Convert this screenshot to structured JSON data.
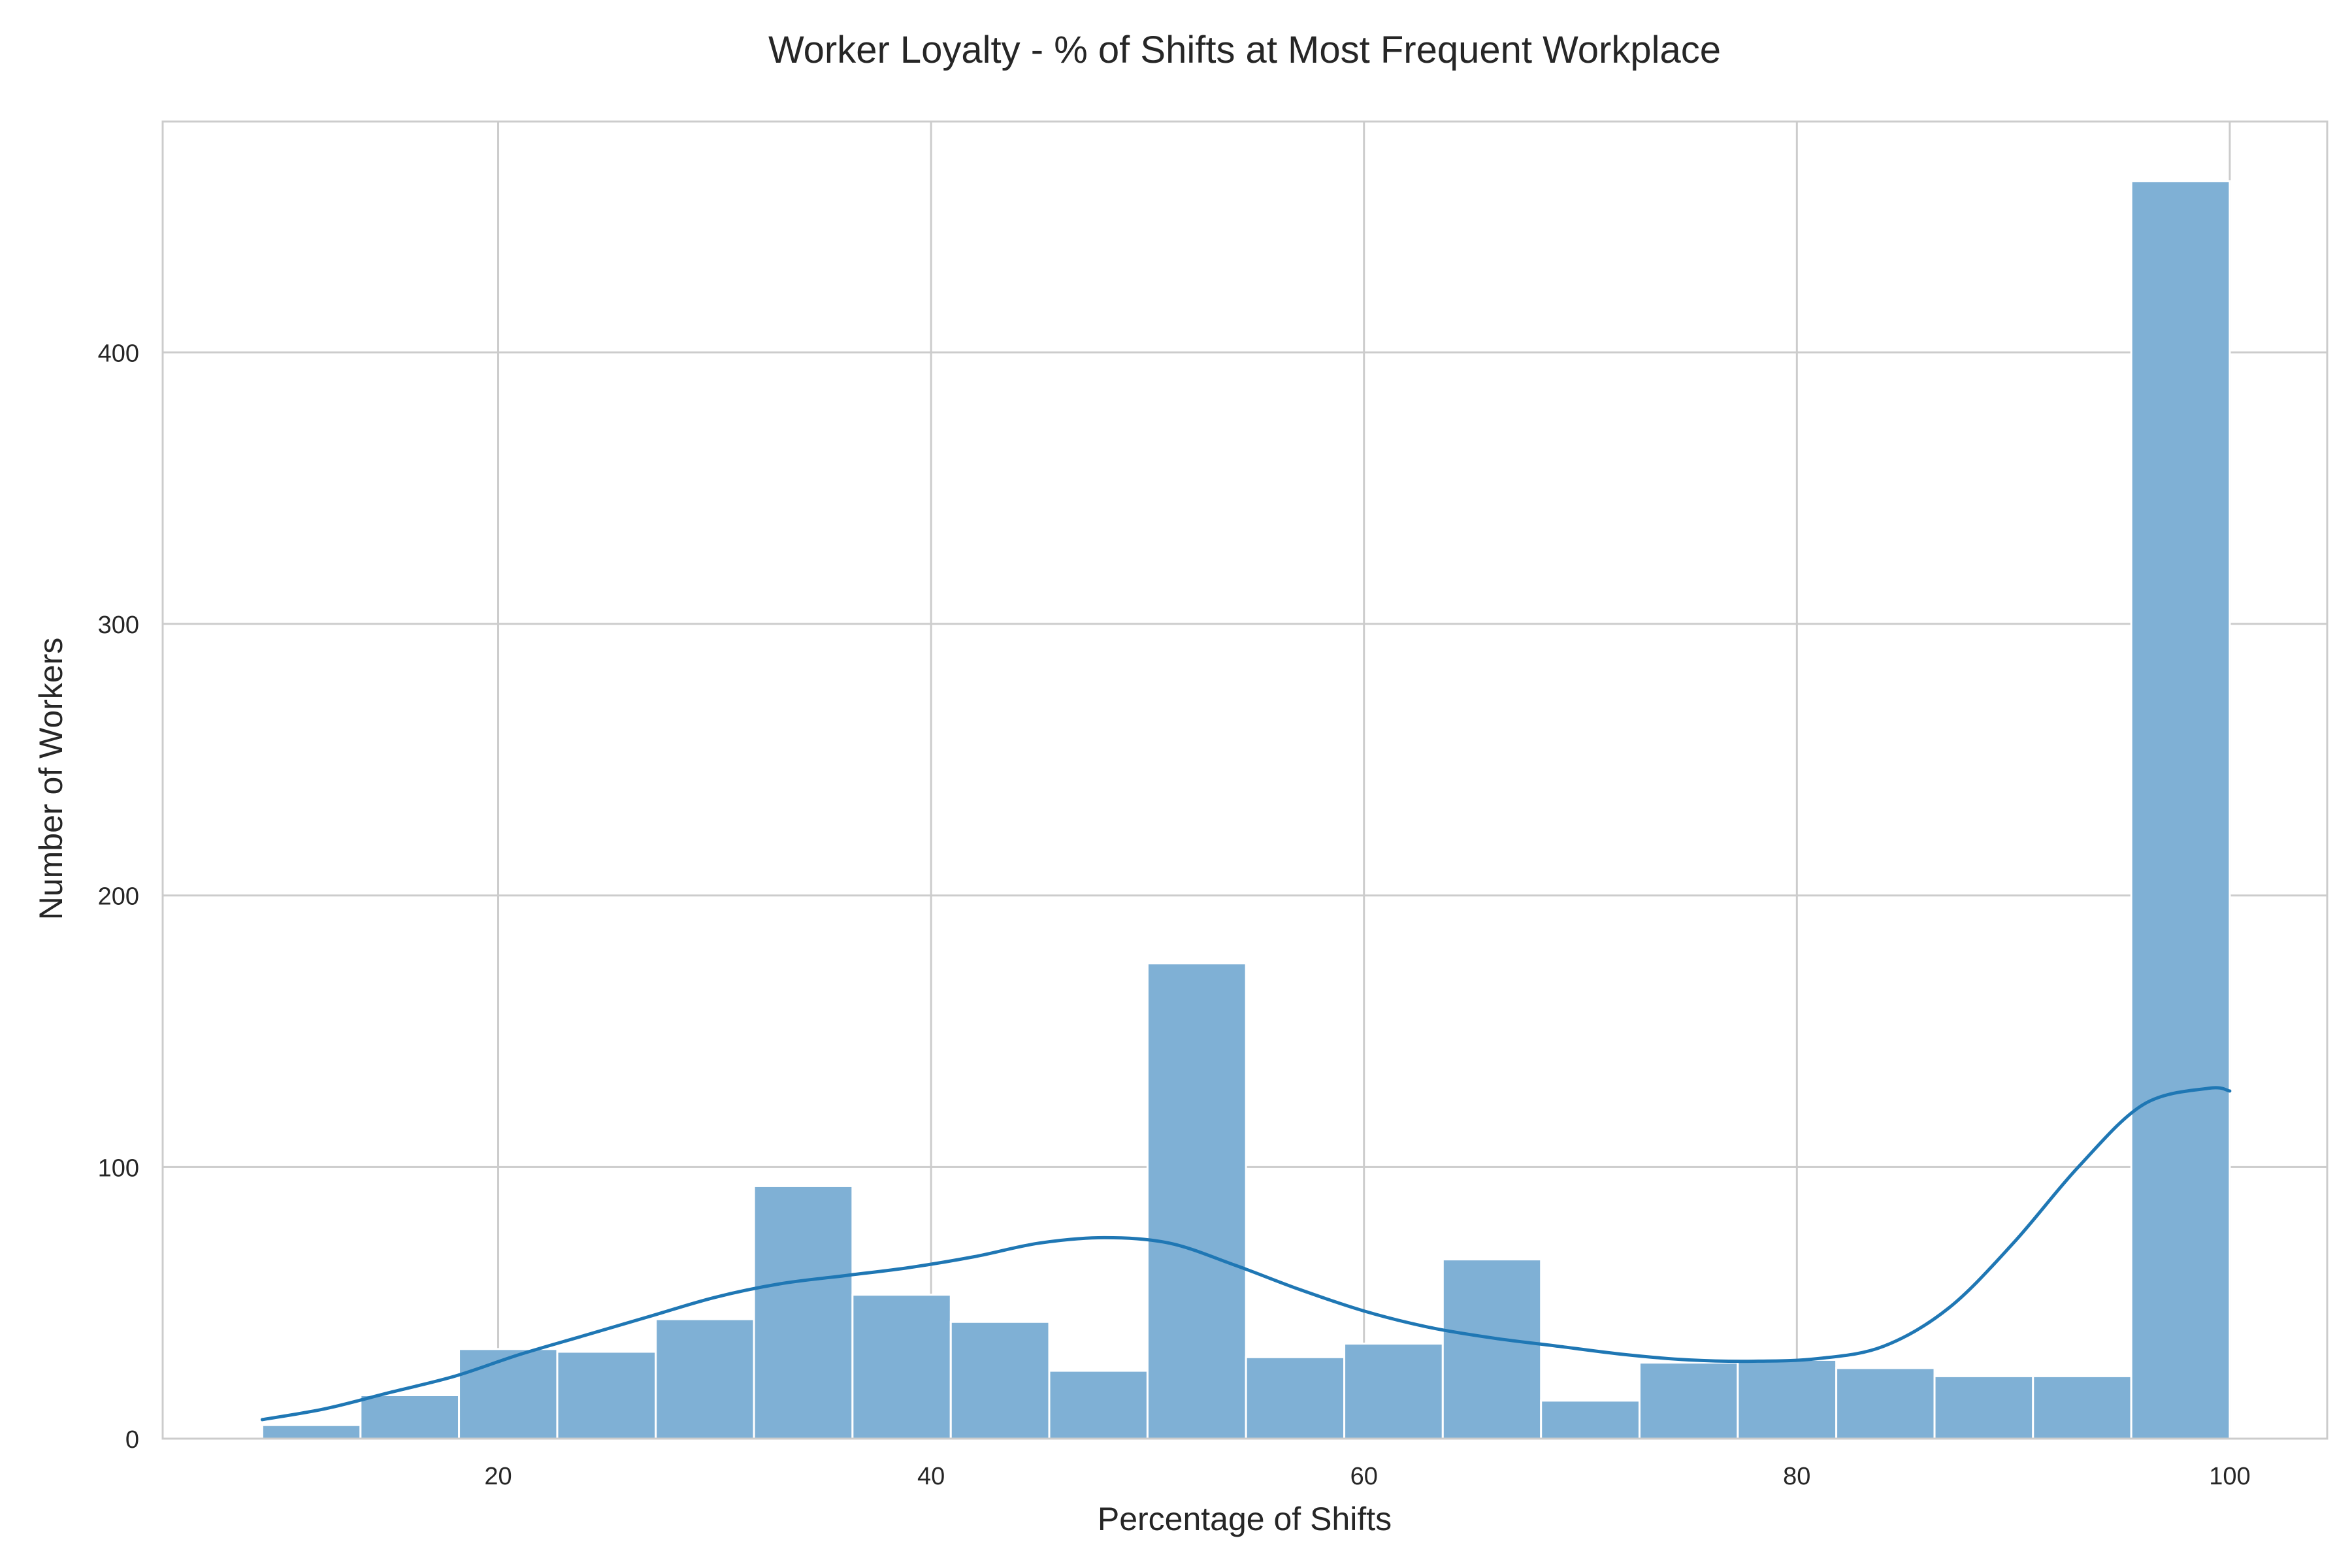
{
  "chart_data": {
    "type": "bar",
    "subtype": "histogram with kde",
    "title": "Worker Loyalty - % of Shifts at Most Frequent Workplace",
    "xlabel": "Percentage of Shifts",
    "ylabel": "Number of Workers",
    "xlim": [
      4.5,
      104.5
    ],
    "ylim": [
      0,
      485
    ],
    "xticks": [
      20,
      40,
      60,
      80,
      100
    ],
    "yticks": [
      0,
      100,
      200,
      300,
      400
    ],
    "grid": true,
    "legend": "none",
    "bar_color": "#7fb0d5",
    "line_color": "#1f77b4",
    "bins": [
      {
        "x0": 9.1,
        "x1": 13.64,
        "count": 5
      },
      {
        "x0": 13.64,
        "x1": 18.19,
        "count": 16
      },
      {
        "x0": 18.19,
        "x1": 22.73,
        "count": 33
      },
      {
        "x0": 22.73,
        "x1": 27.28,
        "count": 32
      },
      {
        "x0": 27.28,
        "x1": 31.82,
        "count": 44
      },
      {
        "x0": 31.82,
        "x1": 36.37,
        "count": 93
      },
      {
        "x0": 36.37,
        "x1": 40.91,
        "count": 53
      },
      {
        "x0": 40.91,
        "x1": 45.46,
        "count": 43
      },
      {
        "x0": 45.46,
        "x1": 50.0,
        "count": 25
      },
      {
        "x0": 50.0,
        "x1": 54.55,
        "count": 175
      },
      {
        "x0": 54.55,
        "x1": 59.09,
        "count": 30
      },
      {
        "x0": 59.09,
        "x1": 63.64,
        "count": 35
      },
      {
        "x0": 63.64,
        "x1": 68.18,
        "count": 66
      },
      {
        "x0": 68.18,
        "x1": 72.73,
        "count": 14
      },
      {
        "x0": 72.73,
        "x1": 77.27,
        "count": 28
      },
      {
        "x0": 77.27,
        "x1": 81.82,
        "count": 29
      },
      {
        "x0": 81.82,
        "x1": 86.36,
        "count": 26
      },
      {
        "x0": 86.36,
        "x1": 90.91,
        "count": 23
      },
      {
        "x0": 90.91,
        "x1": 95.45,
        "count": 23
      },
      {
        "x0": 95.45,
        "x1": 100.0,
        "count": 463
      }
    ],
    "kde": {
      "x": [
        9.1,
        12,
        15,
        18,
        21,
        24,
        27,
        30,
        33,
        36,
        39,
        42,
        45,
        48,
        51,
        54,
        57,
        60,
        63,
        66,
        69,
        72,
        75,
        78,
        81,
        84,
        87,
        90,
        93,
        96,
        99,
        100
      ],
      "y": [
        7,
        11,
        17,
        23,
        31,
        38,
        45,
        52,
        57,
        60,
        63,
        67,
        72,
        74,
        72,
        64,
        55,
        47,
        41,
        37,
        34,
        31,
        29,
        28.5,
        29.5,
        34,
        48,
        72,
        100,
        123,
        129,
        128
      ]
    }
  }
}
